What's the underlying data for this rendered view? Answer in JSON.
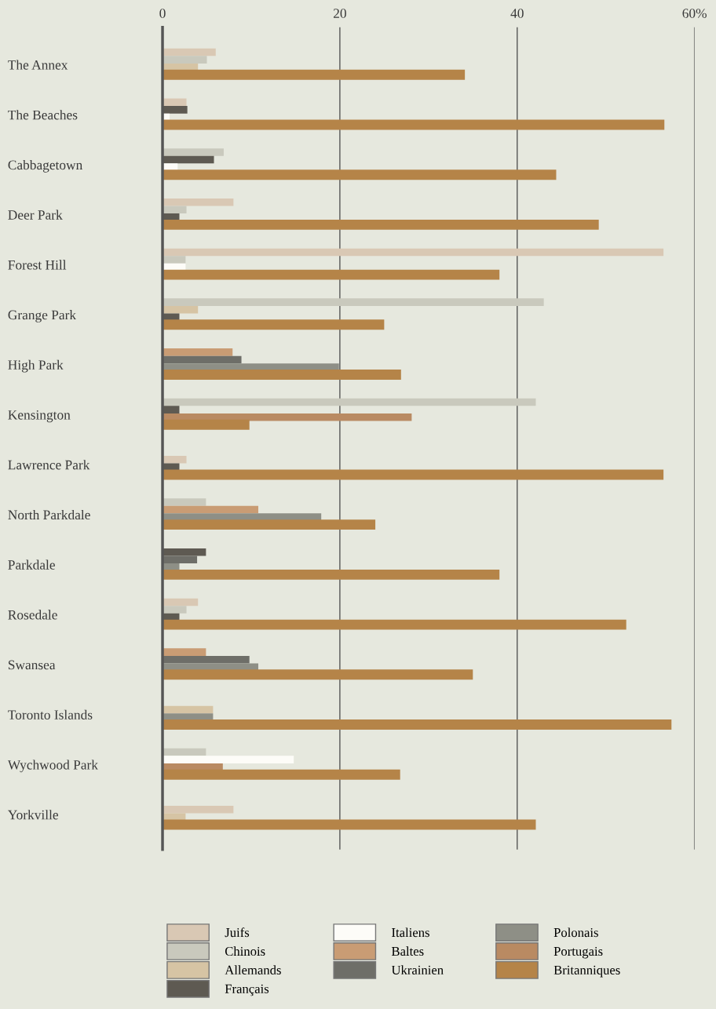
{
  "chart_data": {
    "type": "bar",
    "orientation": "horizontal",
    "categories": [
      "The Annex",
      "The Beaches",
      "Cabbagetown",
      "Deer Park",
      "Forest Hill",
      "Grange Park",
      "High Park",
      "Kensington",
      "Lawrence Park",
      "North Parkdale",
      "Parkdale",
      "Rosedale",
      "Swansea",
      "Toronto Islands",
      "Wychwood Park",
      "Yorkville"
    ],
    "series": [
      {
        "name": "Juifs",
        "color": "#d9c8b4",
        "values": [
          6.0,
          2.7,
          null,
          8.0,
          56.5,
          null,
          null,
          null,
          2.7,
          null,
          null,
          4.0,
          null,
          null,
          null,
          8.0
        ]
      },
      {
        "name": "Chinois",
        "color": "#c9c9bd",
        "values": [
          5.0,
          null,
          6.9,
          2.7,
          2.6,
          43.0,
          null,
          42.1,
          null,
          4.9,
          null,
          2.7,
          null,
          null,
          4.9,
          null
        ]
      },
      {
        "name": "Allemands",
        "color": "#d6c4a4",
        "values": [
          4.0,
          null,
          null,
          null,
          null,
          4.0,
          null,
          null,
          null,
          null,
          null,
          null,
          null,
          5.7,
          null,
          2.6
        ]
      },
      {
        "name": "Français",
        "color": "#5e5a52",
        "values": [
          null,
          2.8,
          5.8,
          1.9,
          null,
          1.9,
          null,
          1.9,
          1.9,
          null,
          4.9,
          1.9,
          null,
          null,
          null,
          null
        ]
      },
      {
        "name": "Italiens",
        "color": "#fdfcf8",
        "values": [
          null,
          0.8,
          1.7,
          null,
          2.6,
          null,
          null,
          null,
          null,
          null,
          null,
          null,
          null,
          null,
          14.8,
          null
        ]
      },
      {
        "name": "Baltes",
        "color": "#c99c74",
        "values": [
          null,
          null,
          null,
          null,
          null,
          null,
          7.9,
          null,
          null,
          10.8,
          null,
          null,
          4.9,
          null,
          null,
          null
        ]
      },
      {
        "name": "Ukrainien",
        "color": "#6e6e68",
        "values": [
          null,
          null,
          null,
          null,
          null,
          null,
          8.9,
          null,
          null,
          null,
          3.9,
          null,
          9.8,
          null,
          null,
          null
        ]
      },
      {
        "name": "Polonais",
        "color": "#8e8f86",
        "values": [
          null,
          null,
          null,
          null,
          null,
          null,
          19.9,
          null,
          null,
          17.9,
          1.9,
          null,
          10.8,
          5.7,
          null,
          null
        ]
      },
      {
        "name": "Portugais",
        "color": "#b98a62",
        "values": [
          null,
          null,
          null,
          null,
          null,
          null,
          null,
          28.1,
          null,
          null,
          null,
          null,
          null,
          null,
          6.8,
          null
        ]
      },
      {
        "name": "Britanniques",
        "color": "#b58448",
        "values": [
          34.1,
          56.6,
          44.4,
          49.2,
          38.0,
          25.0,
          26.9,
          9.8,
          56.5,
          24.0,
          38.0,
          52.3,
          35.0,
          57.4,
          26.8,
          42.1
        ]
      }
    ],
    "xlim": [
      0,
      60
    ],
    "xticks": [
      0,
      20,
      40,
      {
        "value": 60,
        "label": "60%"
      }
    ],
    "grid": "x",
    "legend": "bottom"
  }
}
